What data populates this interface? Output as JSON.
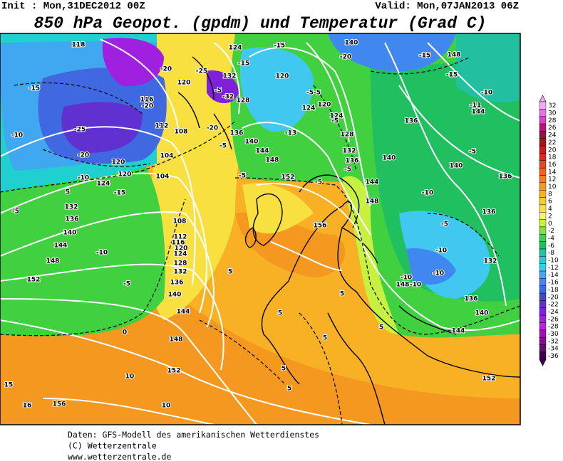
{
  "header": {
    "init": "Init : Mon,31DEC2012 00Z",
    "valid": "Valid: Mon,07JAN2013 06Z",
    "title": "850 hPa Geopot. (gpdm) und Temperatur (Grad C)"
  },
  "colorbar": {
    "levels": [
      32,
      30,
      28,
      26,
      24,
      22,
      20,
      18,
      16,
      14,
      12,
      10,
      8,
      6,
      4,
      2,
      0,
      -2,
      -4,
      -6,
      -8,
      -10,
      -12,
      -14,
      -16,
      -18,
      -20,
      -22,
      -24,
      -26,
      -28,
      -30,
      -32,
      -34,
      -36
    ],
    "colors": [
      "#f4a8f0",
      "#ec70e4",
      "#d840c8",
      "#b81478",
      "#941040",
      "#a81414",
      "#c81c1c",
      "#e02820",
      "#f04420",
      "#f46020",
      "#f47c20",
      "#f49820",
      "#f8b024",
      "#f8c830",
      "#f8e040",
      "#f8f464",
      "#c8f040",
      "#80e040",
      "#40d040",
      "#20c060",
      "#20c0a0",
      "#20d0d0",
      "#40c8f0",
      "#40a8f0",
      "#4088f0",
      "#4068e0",
      "#4048d0",
      "#6030d0",
      "#8020d8",
      "#a020e0",
      "#c020e4",
      "#a010b0",
      "#801090",
      "#601070",
      "#400050"
    ]
  },
  "map": {
    "contour_labels": [
      "118",
      "-20",
      "-25",
      "132",
      "120",
      "-15",
      "124",
      "-15",
      "-20",
      "140",
      "-15",
      "148",
      "-15",
      "120",
      "-5-5",
      "124",
      "120",
      "124",
      "128",
      "132",
      "136",
      "140",
      "144",
      "148",
      "136",
      "-10",
      "-11",
      "144",
      "-5",
      "140",
      "136",
      "136",
      "-10",
      "-5",
      "-10",
      "132",
      "148",
      "-10",
      "136",
      "140",
      "144",
      "152",
      "-15",
      "-10",
      "-25",
      "-20",
      "120",
      "124",
      "-15",
      "-10",
      "5",
      "-5",
      "132",
      "136",
      "140",
      "144",
      "148",
      "152",
      "-10",
      "-5",
      "104",
      "108",
      "112",
      "116",
      "-20",
      "104",
      "108",
      "112",
      "116",
      "120",
      "124",
      "128",
      "132",
      "136",
      "140",
      "144",
      "148",
      "152",
      "156",
      "10",
      "15",
      "16",
      "10",
      "0",
      "5",
      "140",
      "144",
      "148",
      "152",
      "-5",
      "-5",
      "-13",
      "-5",
      "156",
      "5",
      "5",
      "5",
      "5",
      "5",
      "5",
      "-10",
      "-10",
      "-20",
      "-32",
      "-5",
      "128",
      "136",
      "-5",
      "-5",
      "120"
    ]
  },
  "footer": {
    "lines": [
      "Daten: GFS-Modell des amerikanischen Wetterdienstes",
      "(C) Wetterzentrale",
      "www.wetterzentrale.de"
    ]
  }
}
